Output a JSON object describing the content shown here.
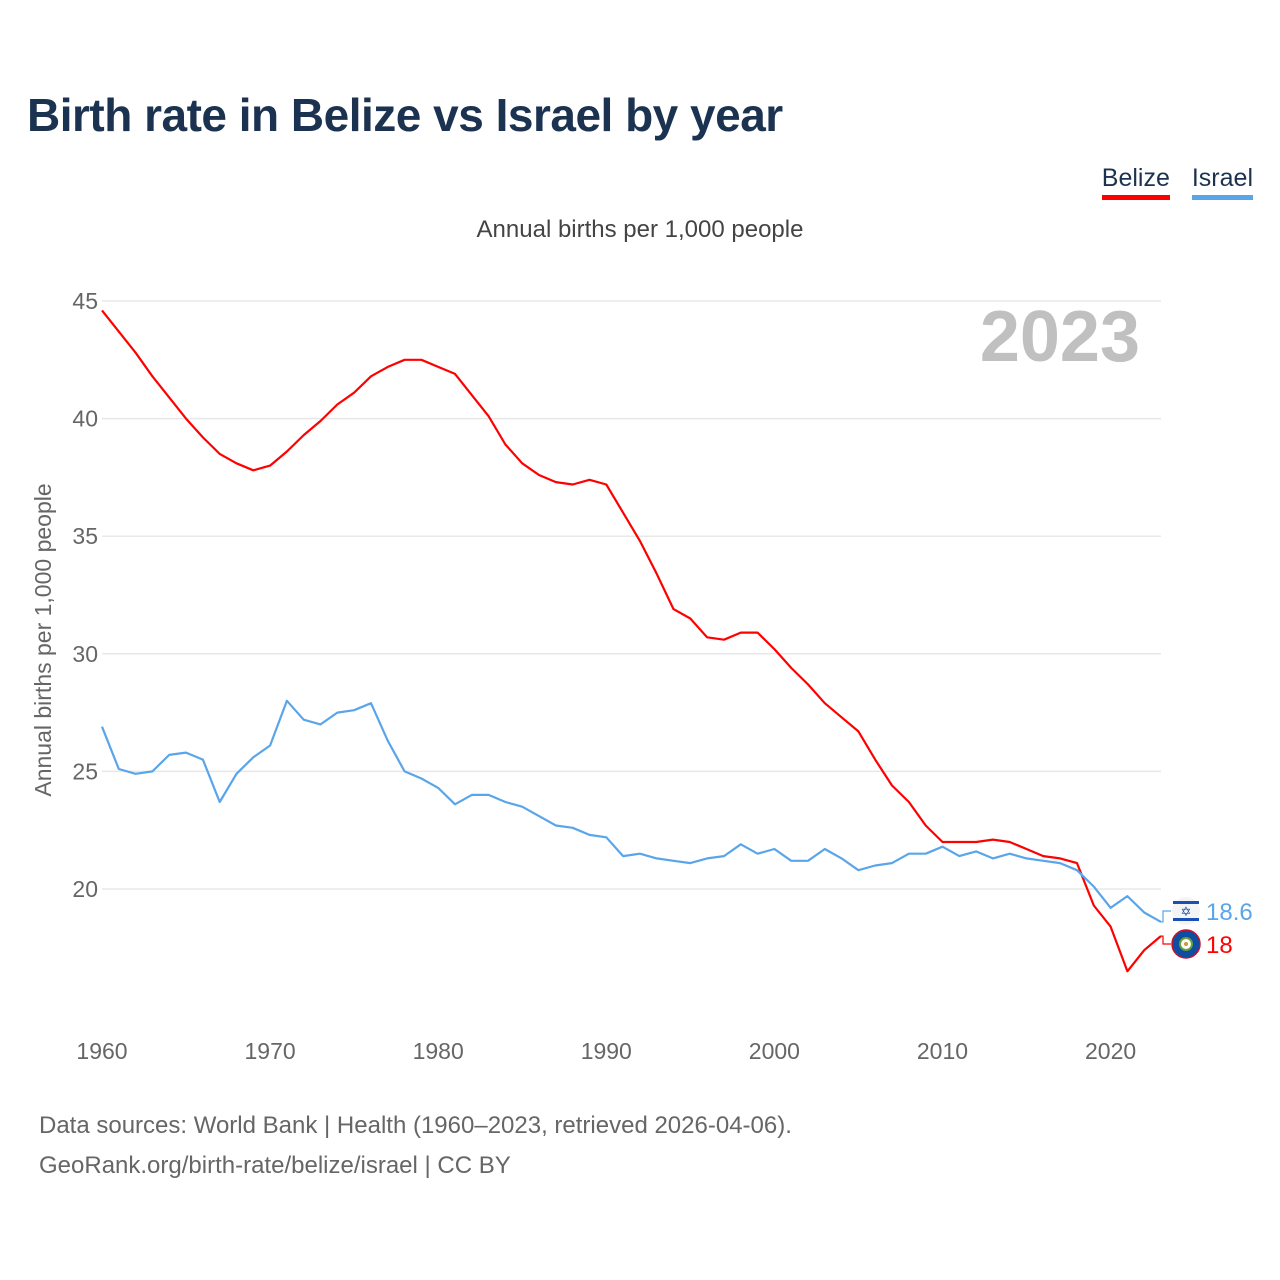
{
  "title": "Birth rate in Belize vs Israel by year",
  "subtitle": "Annual births per 1,000 people",
  "legend": [
    {
      "label": "Belize",
      "color": "#ff0000"
    },
    {
      "label": "Israel",
      "color": "#5aa5ea"
    }
  ],
  "year_watermark": "2023",
  "source_line1": "Data sources: World Bank | Health (1960–2023, retrieved 2026-04-06).",
  "source_line2": "GeoRank.org/birth-rate/belize/israel | CC BY",
  "chart_data": {
    "type": "line",
    "title": "Birth rate in Belize vs Israel by year",
    "xlabel": "",
    "ylabel": "Annual births per 1,000 people",
    "xlim": [
      1960,
      2023
    ],
    "ylim": [
      15,
      45
    ],
    "x_ticks": [
      "1960",
      "1970",
      "1980",
      "1990",
      "2000",
      "2010",
      "2020"
    ],
    "y_ticks": [
      "20",
      "25",
      "30",
      "35",
      "40",
      "45"
    ],
    "grid": true,
    "legend_position": "top-right",
    "x": [
      1960,
      1961,
      1962,
      1963,
      1964,
      1965,
      1966,
      1967,
      1968,
      1969,
      1970,
      1971,
      1972,
      1973,
      1974,
      1975,
      1976,
      1977,
      1978,
      1979,
      1980,
      1981,
      1982,
      1983,
      1984,
      1985,
      1986,
      1987,
      1988,
      1989,
      1990,
      1991,
      1992,
      1993,
      1994,
      1995,
      1996,
      1997,
      1998,
      1999,
      2000,
      2001,
      2002,
      2003,
      2004,
      2005,
      2006,
      2007,
      2008,
      2009,
      2010,
      2011,
      2012,
      2013,
      2014,
      2015,
      2016,
      2017,
      2018,
      2019,
      2020,
      2021,
      2022,
      2023
    ],
    "series": [
      {
        "name": "Belize",
        "color": "#ff0000",
        "end_label": "18",
        "values": [
          44.6,
          43.7,
          42.8,
          41.8,
          40.9,
          40.0,
          39.2,
          38.5,
          38.1,
          37.8,
          38.0,
          38.6,
          39.3,
          39.9,
          40.6,
          41.1,
          41.8,
          42.2,
          42.5,
          42.5,
          42.2,
          41.9,
          41.0,
          40.1,
          38.9,
          38.1,
          37.6,
          37.3,
          37.2,
          37.4,
          37.2,
          36.0,
          34.8,
          33.4,
          31.9,
          31.5,
          30.7,
          30.6,
          30.9,
          30.9,
          30.2,
          29.4,
          28.7,
          27.9,
          27.3,
          26.7,
          25.5,
          24.4,
          23.7,
          22.7,
          22.0,
          22.0,
          22.0,
          22.1,
          22.0,
          21.7,
          21.4,
          21.3,
          21.1,
          19.3,
          18.4,
          16.5,
          17.4,
          18.0
        ]
      },
      {
        "name": "Israel",
        "color": "#5aa5ea",
        "end_label": "18.6",
        "values": [
          26.9,
          25.1,
          24.9,
          25.0,
          25.7,
          25.8,
          25.5,
          23.7,
          24.9,
          25.6,
          26.1,
          28.0,
          27.2,
          27.0,
          27.5,
          27.6,
          27.9,
          26.3,
          25.0,
          24.7,
          24.3,
          23.6,
          24.0,
          24.0,
          23.7,
          23.5,
          23.1,
          22.7,
          22.6,
          22.3,
          22.2,
          21.4,
          21.5,
          21.3,
          21.2,
          21.1,
          21.3,
          21.4,
          21.9,
          21.5,
          21.7,
          21.2,
          21.2,
          21.7,
          21.3,
          20.8,
          21.0,
          21.1,
          21.5,
          21.5,
          21.8,
          21.4,
          21.6,
          21.3,
          21.5,
          21.3,
          21.2,
          21.1,
          20.8,
          20.1,
          19.2,
          19.7,
          19.0,
          18.6
        ]
      }
    ]
  }
}
